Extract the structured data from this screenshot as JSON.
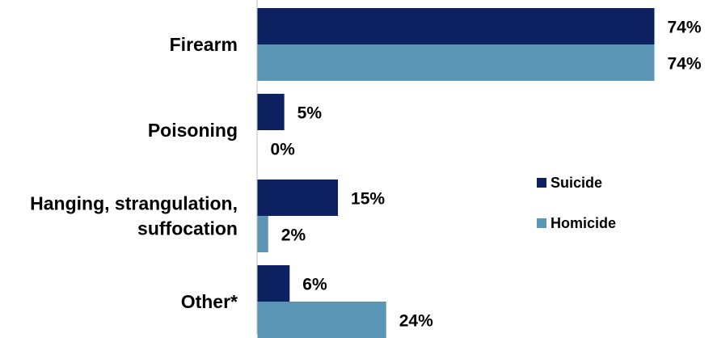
{
  "chart_data": {
    "type": "bar",
    "orientation": "horizontal",
    "categories": [
      [
        "Firearm"
      ],
      [
        "Poisoning"
      ],
      [
        "Hanging, strangulation,",
        "suffocation"
      ],
      [
        "Other*"
      ]
    ],
    "series": [
      {
        "name": "Suicide",
        "color": "#0d2160",
        "values": [
          74,
          5,
          15,
          6
        ],
        "labels": [
          "74%",
          "5%",
          "15%",
          "6%"
        ]
      },
      {
        "name": "Homicide",
        "color": "#5b96b6",
        "values": [
          74,
          0,
          2,
          24
        ],
        "labels": [
          "74%",
          "0%",
          "2%",
          "24%"
        ]
      }
    ],
    "xlim": [
      0,
      74
    ],
    "unit": "%",
    "grid": false,
    "legend": "right"
  }
}
